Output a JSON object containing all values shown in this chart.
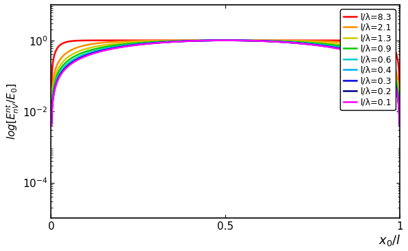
{
  "ratios": [
    8.3,
    2.1,
    1.3,
    0.9,
    0.6,
    0.4,
    0.3,
    0.2,
    0.1
  ],
  "colors": [
    "#ff0000",
    "#ff8c00",
    "#cccc00",
    "#00cc00",
    "#00cccc",
    "#00aaff",
    "#0000dd",
    "#000088",
    "#ff00ff"
  ],
  "labels": [
    "l/λ=8.3",
    "l/λ=2.1",
    "l/λ=1.3",
    "l/λ=0.9",
    "l/λ=0.6",
    "l/λ=0.4",
    "l/λ=0.3",
    "l/λ=0.2",
    "l/λ=0.1"
  ],
  "xlabel": "$x_0/l$",
  "ylabel": "$log[E^{nt}_{nV}/E_0]$",
  "xlim": [
    0,
    1
  ],
  "ylim_log": [
    1e-05,
    10
  ],
  "x_ticks": [
    0,
    0.5,
    1
  ],
  "y_ticks": [
    0.0001,
    0.01,
    1.0
  ],
  "figsize": [
    5.94,
    3.65
  ],
  "dpi": 100,
  "linewidth": 1.8
}
